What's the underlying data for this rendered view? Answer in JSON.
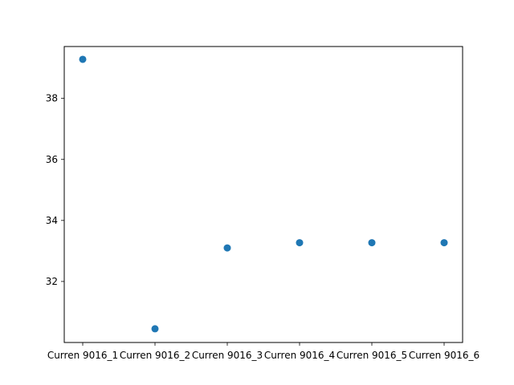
{
  "chart_data": {
    "type": "scatter",
    "title": "",
    "xlabel": "",
    "ylabel": "",
    "categories": [
      "Curren 9016_1",
      "Curren 9016_2",
      "Curren 9016_3",
      "Curren 9016_4",
      "Curren 9016_5",
      "Curren 9016_6"
    ],
    "values": [
      39.28,
      30.45,
      33.1,
      33.27,
      33.27,
      33.27
    ],
    "ylim": [
      30.0,
      39.7
    ],
    "yticks": [
      32,
      34,
      36,
      38
    ],
    "ytick_labels": [
      "32",
      "34",
      "36",
      "38"
    ],
    "grid": false,
    "marker_color": "#1f77b4"
  }
}
